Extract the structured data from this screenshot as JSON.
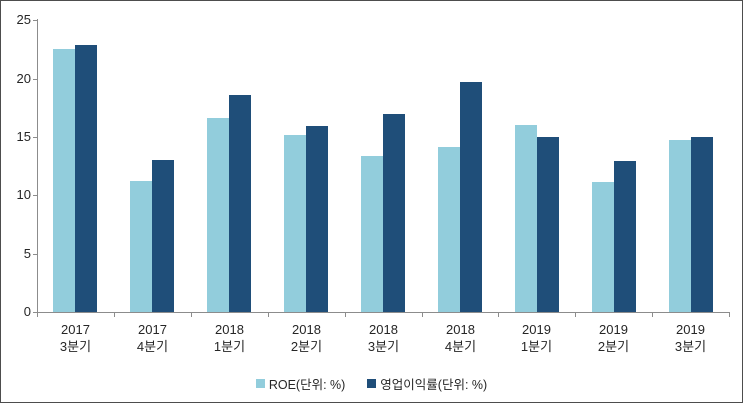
{
  "chart_data": {
    "type": "bar",
    "title": "",
    "xlabel": "",
    "ylabel": "",
    "categories": [
      {
        "line1": "2017",
        "line2": "3분기"
      },
      {
        "line1": "2017",
        "line2": "4분기"
      },
      {
        "line1": "2018",
        "line2": "1분기"
      },
      {
        "line1": "2018",
        "line2": "2분기"
      },
      {
        "line1": "2018",
        "line2": "3분기"
      },
      {
        "line1": "2018",
        "line2": "4분기"
      },
      {
        "line1": "2019",
        "line2": "1분기"
      },
      {
        "line1": "2019",
        "line2": "2분기"
      },
      {
        "line1": "2019",
        "line2": "3분기"
      }
    ],
    "series": [
      {
        "name": "ROE(단위: %)",
        "color": "#92CDDC",
        "values": [
          22.5,
          11.2,
          16.6,
          15.2,
          13.4,
          14.1,
          16.0,
          11.1,
          14.7
        ]
      },
      {
        "name": "영업이익률(단위: %)",
        "color": "#1F4E79",
        "values": [
          22.9,
          13.0,
          18.6,
          15.9,
          17.0,
          19.7,
          15.0,
          12.9,
          15.0
        ]
      }
    ],
    "ylim": [
      0,
      25
    ],
    "yticks": [
      0,
      5,
      10,
      15,
      20,
      25
    ],
    "grid": false,
    "legend_position": "bottom"
  },
  "colors": {
    "series1": "#92CDDC",
    "series2": "#1F4E79",
    "axis": "#8C8C8C",
    "text": "#262626",
    "frame_border": "#4D4D4D",
    "background": "#FFFFFF"
  }
}
